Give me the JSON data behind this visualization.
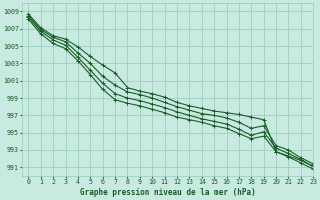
{
  "background_color": "#c8eae0",
  "grid_color": "#9ecfbf",
  "line_color": "#1a5c28",
  "xlabel": "Graphe pression niveau de la mer (hPa)",
  "xlim": [
    -0.5,
    23
  ],
  "ylim": [
    990.0,
    1010.0
  ],
  "yticks": [
    991,
    993,
    995,
    997,
    999,
    1001,
    1003,
    1005,
    1007,
    1009
  ],
  "xticks": [
    0,
    1,
    2,
    3,
    4,
    5,
    6,
    7,
    8,
    9,
    10,
    11,
    12,
    13,
    14,
    15,
    16,
    17,
    18,
    19,
    20,
    21,
    22,
    23
  ],
  "series": [
    [
      1008.7,
      1007.1,
      1006.2,
      1005.8,
      1004.9,
      1003.8,
      1002.8,
      1001.9,
      1000.2,
      999.8,
      999.5,
      999.1,
      998.5,
      998.1,
      997.8,
      997.5,
      997.3,
      997.1,
      996.8,
      996.5,
      992.8,
      992.3,
      991.8,
      991.1
    ],
    [
      1008.5,
      1006.9,
      1006.0,
      1005.5,
      1004.2,
      1003.0,
      1001.5,
      1000.5,
      999.7,
      999.4,
      999.0,
      998.5,
      998.0,
      997.6,
      997.2,
      997.0,
      996.7,
      996.2,
      995.5,
      995.8,
      993.5,
      993.0,
      992.1,
      991.4
    ],
    [
      1008.3,
      1006.7,
      1005.7,
      1005.1,
      1003.7,
      1002.2,
      1000.7,
      999.5,
      999.0,
      998.7,
      998.3,
      997.9,
      997.4,
      997.0,
      996.6,
      996.3,
      996.0,
      995.4,
      994.7,
      995.1,
      993.2,
      992.6,
      991.9,
      991.1
    ],
    [
      1008.1,
      1006.4,
      1005.3,
      1004.7,
      1003.3,
      1001.7,
      1000.0,
      998.8,
      998.4,
      998.1,
      997.7,
      997.3,
      996.8,
      996.5,
      996.2,
      995.8,
      995.5,
      994.9,
      994.3,
      994.6,
      992.8,
      992.2,
      991.5,
      990.8
    ]
  ]
}
